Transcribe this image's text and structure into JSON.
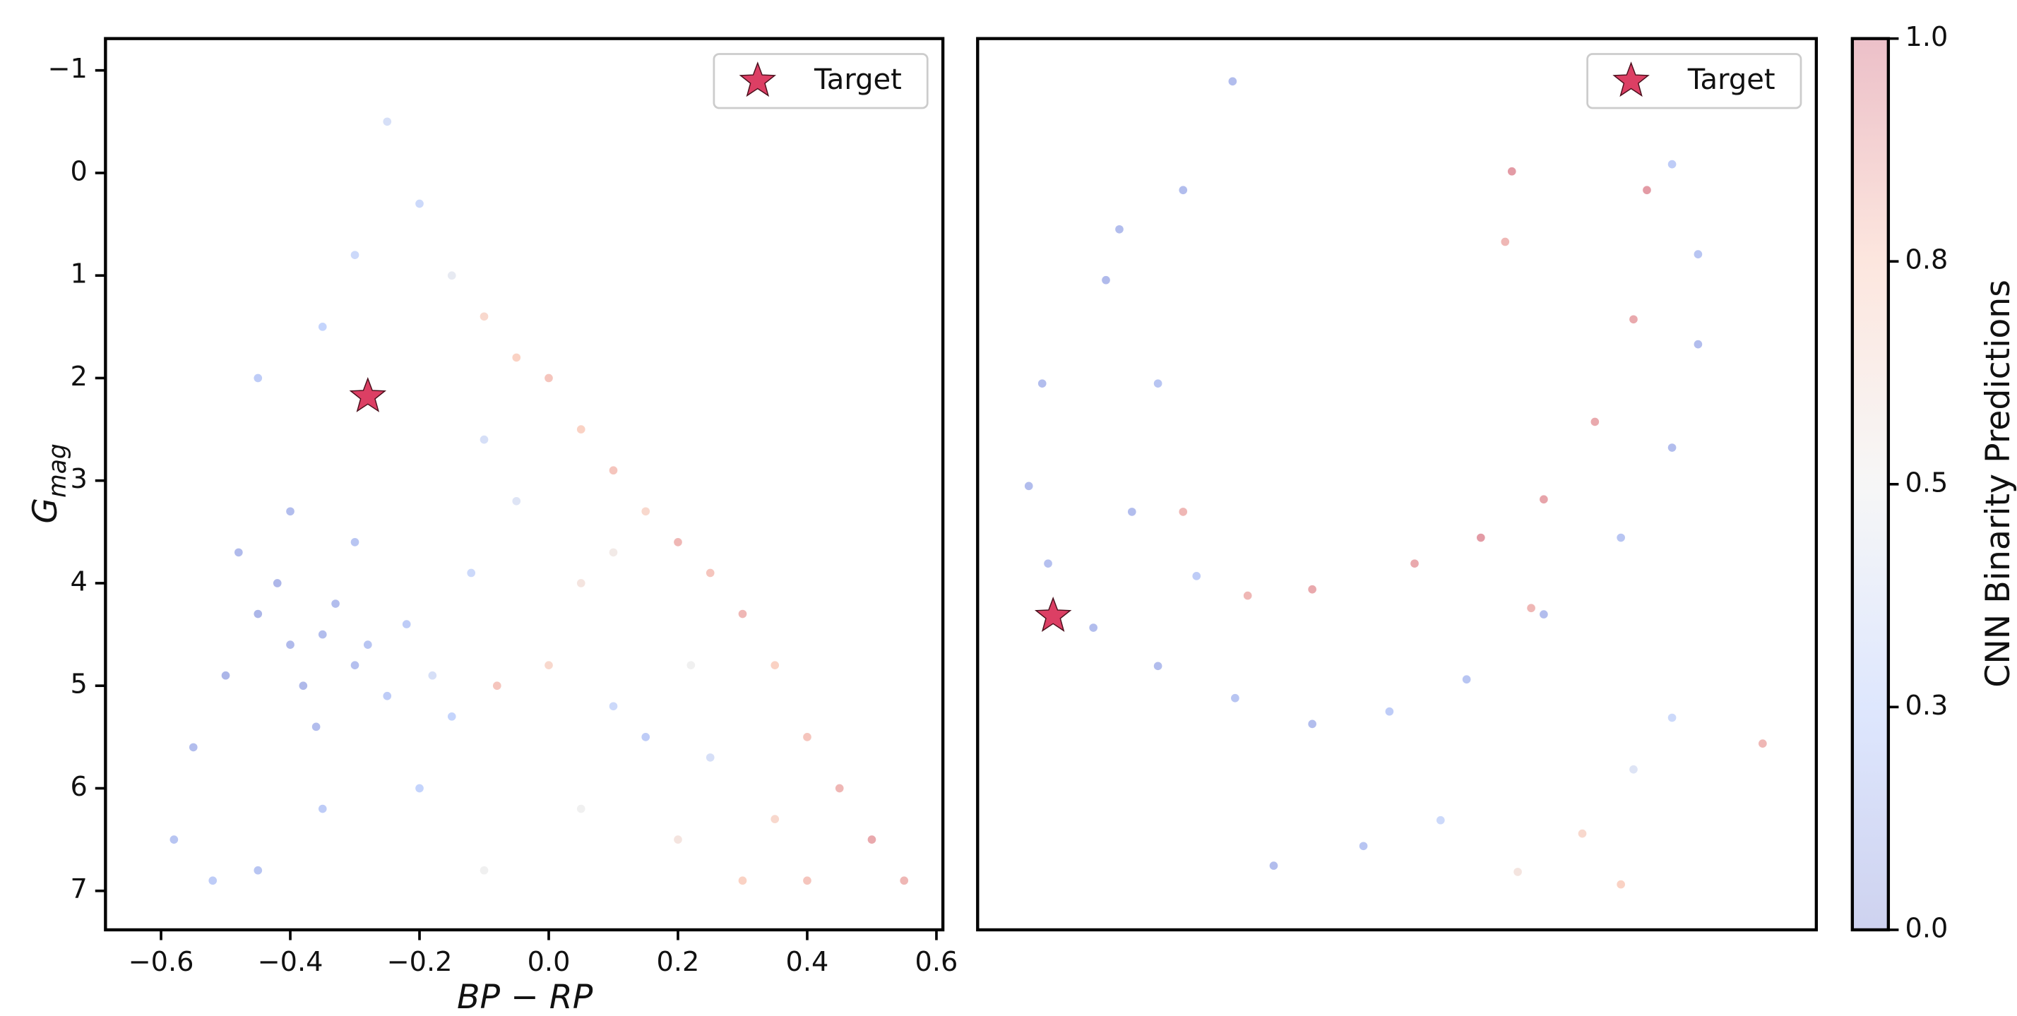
{
  "chart_data": [
    {
      "type": "scatter",
      "xlabel": "BP − RP",
      "ylabel": "G",
      "ylabel_subscript": "mag",
      "xlim": [
        -0.686,
        0.61
      ],
      "ylim": [
        7.38,
        -1.31
      ],
      "xticks": [
        {
          "value": -0.6,
          "label": "−0.6"
        },
        {
          "value": -0.4,
          "label": "−0.4"
        },
        {
          "value": -0.2,
          "label": "−0.2"
        },
        {
          "value": 0,
          "label": "0.0"
        },
        0.2,
        0.4,
        0.6
      ],
      "yticks": [
        {
          "value": -1,
          "label": "−1"
        },
        0,
        1,
        2,
        3,
        4,
        5,
        6,
        7
      ],
      "legend": "upper right",
      "series": [
        {
          "alpha": 0.45,
          "x": [
            -0.45,
            -0.4,
            -0.35,
            -0.3,
            -0.38,
            -0.42,
            -0.33,
            -0.28,
            -0.25,
            -0.48,
            -0.5,
            -0.36,
            -0.22,
            -0.18,
            -0.15,
            -0.3,
            -0.4,
            -0.55,
            -0.58,
            -0.52,
            -0.45,
            -0.35,
            -0.2,
            -0.45,
            -0.35,
            -0.3,
            -0.25,
            -0.2,
            -0.15,
            -0.1,
            -0.05,
            0.0,
            0.05,
            -0.1,
            -0.05,
            0.1,
            0.15,
            0.2,
            0.25,
            0.3,
            0.05,
            0.0,
            -0.08,
            0.1,
            0.15,
            0.25,
            0.35,
            0.4,
            0.45,
            0.5,
            0.55,
            0.35,
            0.2,
            0.05,
            0.3,
            -0.1,
            0.4,
            0.1,
            -0.12,
            0.22
          ],
          "y": [
            4.3,
            4.6,
            4.5,
            4.8,
            5.0,
            4.0,
            4.2,
            4.6,
            5.1,
            3.7,
            4.9,
            5.4,
            4.4,
            4.9,
            5.3,
            3.6,
            3.3,
            5.6,
            6.5,
            6.9,
            6.8,
            6.2,
            6.0,
            2.0,
            1.5,
            0.8,
            -0.5,
            0.3,
            1.0,
            1.4,
            1.8,
            2.0,
            2.5,
            2.6,
            3.2,
            2.9,
            3.3,
            3.6,
            3.9,
            4.3,
            4.0,
            4.8,
            5.0,
            5.2,
            5.5,
            5.7,
            4.8,
            5.5,
            6.0,
            6.5,
            6.9,
            6.3,
            6.5,
            6.2,
            6.9,
            6.8,
            6.9,
            3.7,
            3.9,
            4.8
          ],
          "c": [
            0.05,
            0.08,
            0.1,
            0.12,
            0.07,
            0.06,
            0.1,
            0.15,
            0.2,
            0.08,
            0.05,
            0.1,
            0.2,
            0.35,
            0.25,
            0.15,
            0.1,
            0.1,
            0.15,
            0.2,
            0.15,
            0.2,
            0.25,
            0.2,
            0.25,
            0.3,
            0.35,
            0.3,
            0.45,
            0.7,
            0.75,
            0.8,
            0.75,
            0.35,
            0.4,
            0.8,
            0.7,
            0.85,
            0.8,
            0.85,
            0.6,
            0.7,
            0.8,
            0.3,
            0.2,
            0.35,
            0.75,
            0.8,
            0.85,
            0.9,
            0.85,
            0.7,
            0.6,
            0.5,
            0.75,
            0.5,
            0.8,
            0.55,
            0.3,
            0.5
          ]
        },
        {
          "name": "Target",
          "marker": "star",
          "color": "#dc3f64",
          "x": [
            -0.28
          ],
          "y": [
            2.18
          ]
        }
      ]
    },
    {
      "type": "scatter",
      "xlim": [
        0,
        10
      ],
      "ylim": [
        0,
        10
      ],
      "legend": "upper right",
      "series": [
        {
          "alpha": 0.45,
          "x": [
            3.04,
            2.45,
            1.53,
            0.77,
            0.61,
            0.84,
            1.38,
            2.15,
            3.07,
            3.99,
            4.91,
            5.83,
            6.75,
            7.67,
            8.28,
            8.59,
            8.59,
            8.28,
            2.15,
            1.84,
            2.61,
            1.69,
            6.37,
            6.29,
            7.98,
            7.82,
            7.36,
            6.75,
            6.0,
            5.21,
            3.99,
            3.22,
            2.45,
            6.6,
            9.36,
            3.53,
            4.6,
            5.52,
            6.44,
            7.21,
            7.82,
            8.28,
            7.67
          ],
          "y": [
            9.52,
            8.3,
            7.29,
            6.13,
            4.98,
            4.11,
            3.39,
            2.96,
            2.6,
            2.31,
            2.45,
            2.81,
            3.54,
            4.4,
            5.41,
            6.57,
            7.58,
            8.59,
            6.13,
            4.69,
            3.97,
            7.86,
            8.51,
            7.72,
            8.3,
            6.85,
            5.7,
            4.83,
            4.4,
            4.11,
            3.82,
            3.75,
            4.69,
            3.61,
            2.09,
            0.72,
            0.94,
            1.23,
            0.65,
            1.08,
            1.8,
            2.38,
            0.51
          ],
          "c": [
            0.1,
            0.1,
            0.08,
            0.1,
            0.1,
            0.12,
            0.1,
            0.1,
            0.15,
            0.1,
            0.2,
            0.15,
            0.1,
            0.15,
            0.1,
            0.1,
            0.15,
            0.2,
            0.15,
            0.1,
            0.2,
            0.1,
            0.95,
            0.85,
            0.95,
            0.9,
            0.9,
            0.92,
            0.95,
            0.9,
            0.9,
            0.85,
            0.85,
            0.85,
            0.85,
            0.1,
            0.15,
            0.3,
            0.6,
            0.7,
            0.4,
            0.3,
            0.75
          ]
        },
        {
          "name": "Target",
          "marker": "star",
          "color": "#dc3f64",
          "x": [
            0.9
          ],
          "y": [
            3.52
          ]
        }
      ],
      "colorbar": {
        "label": "CNN Binarity Predictions",
        "cmap": "coolwarm",
        "alpha": 0.25,
        "lim": [
          0,
          1
        ],
        "ticks": [
          {
            "value": 0,
            "label": "0.0"
          },
          {
            "value": 0.25,
            "label": "0.3"
          },
          {
            "value": 0.5,
            "label": "0.5"
          },
          {
            "value": 0.75,
            "label": "0.8"
          },
          {
            "value": 1,
            "label": "1.0"
          }
        ]
      }
    }
  ]
}
